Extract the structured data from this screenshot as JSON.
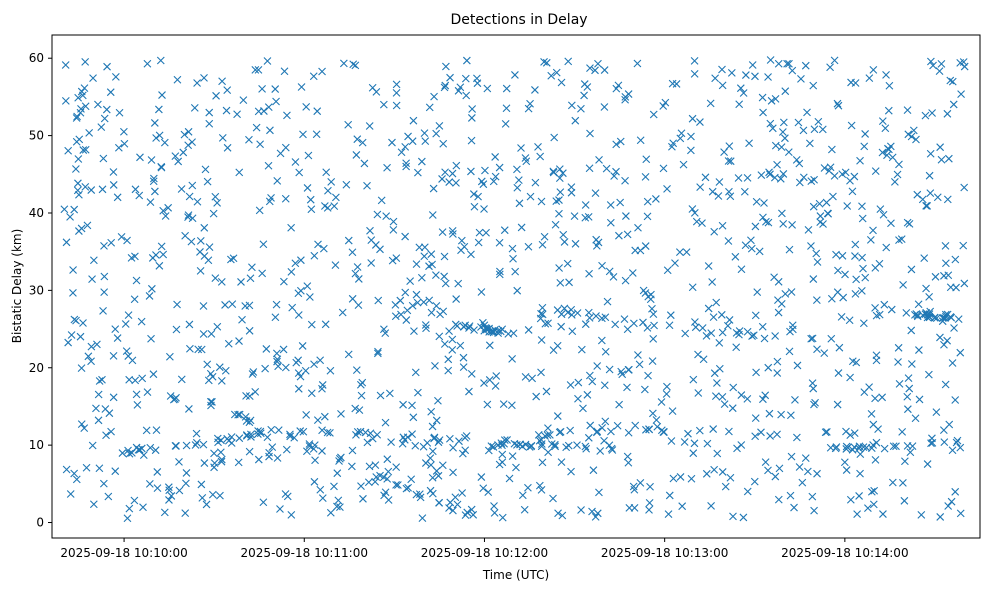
{
  "chart_data": {
    "type": "scatter",
    "title": "Detections in Delay",
    "xlabel": "Time (UTC)",
    "ylabel": "Bistatic Delay (km)",
    "marker": "x",
    "color": "#1f77b4",
    "x_unit": "time",
    "x_start": "2025-09-18 10:09:40",
    "x_end": "2025-09-18 10:14:40",
    "xlim": [
      "2025-09-18 10:09:36",
      "2025-09-18 10:14:45"
    ],
    "ylim": [
      -2,
      63
    ],
    "x_ticks": [
      "2025-09-18 10:10:00",
      "2025-09-18 10:11:00",
      "2025-09-18 10:12:00",
      "2025-09-18 10:13:00",
      "2025-09-18 10:14:00"
    ],
    "y_ticks": [
      0,
      10,
      20,
      30,
      40,
      50,
      60
    ],
    "grid": false,
    "tracks": [
      {
        "points": [
          [
            "10:10:15",
            17.5
          ],
          [
            "10:10:50",
            12.2
          ],
          [
            "10:11:20",
            11.5
          ],
          [
            "10:11:40",
            11.2
          ],
          [
            "10:11:55",
            10.6
          ]
        ]
      },
      {
        "points": [
          [
            "10:10:00",
            9.0
          ],
          [
            "10:10:30",
            10.5
          ],
          [
            "10:10:50",
            12.0
          ]
        ]
      },
      {
        "points": [
          [
            "10:10:50",
            12.0
          ],
          [
            "10:11:30",
            5.0
          ],
          [
            "10:11:50",
            1.5
          ],
          [
            "10:11:58",
            0.8
          ]
        ]
      },
      {
        "points": [
          [
            "10:11:50",
            25.5
          ],
          [
            "10:12:10",
            24.5
          ]
        ]
      },
      {
        "points": [
          [
            "10:12:10",
            28.0
          ],
          [
            "10:12:40",
            26.5
          ],
          [
            "10:13:20",
            24.5
          ],
          [
            "10:13:50",
            24.0
          ]
        ]
      },
      {
        "points": [
          [
            "10:12:05",
            10.5
          ],
          [
            "10:12:30",
            12.0
          ],
          [
            "10:13:00",
            11.8
          ],
          [
            "10:13:40",
            11.2
          ]
        ]
      },
      {
        "points": [
          [
            "10:12:00",
            10.0
          ],
          [
            "10:12:40",
            9.8
          ]
        ]
      },
      {
        "points": [
          [
            "10:13:50",
            9.3
          ],
          [
            "10:14:20",
            10.0
          ],
          [
            "10:14:38",
            10.3
          ]
        ]
      },
      {
        "points": [
          [
            "10:14:20",
            27.0
          ],
          [
            "10:14:38",
            26.5
          ]
        ]
      }
    ],
    "scattered_points_count": 1300,
    "track_points_count": 220
  }
}
